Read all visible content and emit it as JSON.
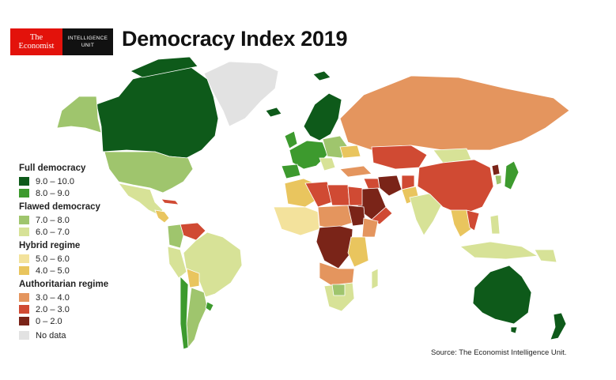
{
  "logo": {
    "economist_line1": "The",
    "economist_line2": "Economist",
    "eiu_line1": "INTELLIGENCE",
    "eiu_line2": "UNIT"
  },
  "title": "Democracy Index 2019",
  "legend": {
    "full": {
      "heading": "Full democracy",
      "items": [
        {
          "label": "9.0 – 10.0",
          "color": "#0e5a1a"
        },
        {
          "label": "8.0 – 9.0",
          "color": "#3d9a2e"
        }
      ]
    },
    "flawed": {
      "heading": "Flawed democracy",
      "items": [
        {
          "label": "7.0 – 8.0",
          "color": "#9fc56d"
        },
        {
          "label": "6.0 – 7.0",
          "color": "#d7e297"
        }
      ]
    },
    "hybrid": {
      "heading": "Hybrid regime",
      "items": [
        {
          "label": "5.0 – 6.0",
          "color": "#f3e29c"
        },
        {
          "label": "4.0 – 5.0",
          "color": "#e9c55e"
        }
      ]
    },
    "authoritarian": {
      "heading": "Authoritarian regime",
      "items": [
        {
          "label": "3.0 – 4.0",
          "color": "#e4955e"
        },
        {
          "label": "2.0 – 3.0",
          "color": "#d04a33"
        },
        {
          "label": "0 – 2.0",
          "color": "#7a2418"
        }
      ]
    },
    "no_data": {
      "label": "No data",
      "color": "#e2e2e2"
    }
  },
  "source": "Source: The Economist Intelligence Unit."
}
